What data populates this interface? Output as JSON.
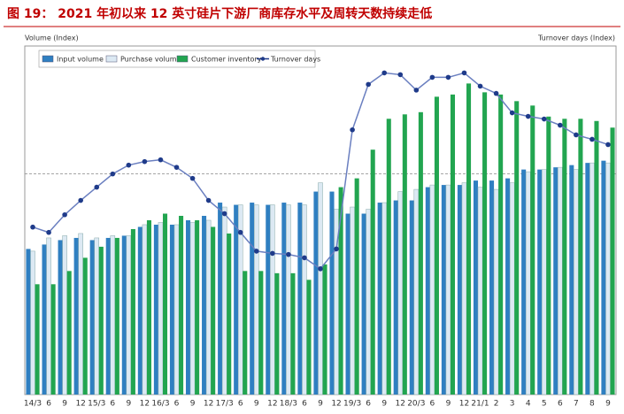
{
  "chart_data": {
    "type": "bar_line",
    "title": "图 19： 2021 年初以来 12 英寸硅片下游厂商库存水平及周转天数持续走低",
    "y_label": "Volume (Index)",
    "y2_label": "Turnover days (Index)",
    "categories": [
      "14/3",
      "6",
      "9",
      "12",
      "15/3",
      "6",
      "9",
      "12",
      "16/3",
      "6",
      "9",
      "12",
      "17/3",
      "6",
      "9",
      "12",
      "18/3",
      "6",
      "9",
      "12",
      "19/3",
      "6",
      "9",
      "12",
      "20/3",
      "6",
      "9",
      "12",
      "21/1",
      "2",
      "3",
      "4",
      "5",
      "6",
      "7",
      "8",
      "9"
    ],
    "ylim": [
      0,
      160
    ],
    "y2lim": [
      0,
      160
    ],
    "reference_line": 100,
    "series": [
      {
        "name": "Input volume",
        "color": "#2f7fc1",
        "values": [
          66,
          68,
          70,
          71,
          70,
          71,
          72,
          76,
          77,
          77,
          79,
          81,
          87,
          86,
          87,
          86,
          87,
          87,
          92,
          92,
          82,
          82,
          87,
          88,
          88,
          94,
          95,
          95,
          97,
          97,
          98,
          102,
          102,
          103,
          104,
          105,
          106
        ]
      },
      {
        "name": "Purchase volume",
        "color": "#dce9f3",
        "values": [
          65,
          71,
          72,
          73,
          71,
          72,
          72,
          77,
          78,
          77,
          78,
          79,
          85,
          86,
          86,
          86,
          86,
          86,
          96,
          84,
          85,
          84,
          87,
          92,
          93,
          95,
          95,
          96,
          94,
          93,
          96,
          101,
          102,
          103,
          102,
          105,
          105
        ]
      },
      {
        "name": "Customer inventory",
        "color": "#22a550",
        "values": [
          50,
          50,
          56,
          62,
          67,
          71,
          75,
          79,
          82,
          81,
          79,
          76,
          73,
          56,
          56,
          55,
          55,
          52,
          59,
          94,
          98,
          111,
          125,
          127,
          128,
          135,
          136,
          141,
          137,
          136,
          133,
          131,
          126,
          125,
          125,
          124,
          121
        ]
      },
      {
        "name": "Turnover days",
        "color": "#1f3b8a",
        "axis": "y2",
        "values": [
          75.9,
          73.5,
          81.5,
          88,
          94,
          100,
          104,
          105.6,
          106.4,
          103,
          98,
          88,
          82,
          73.5,
          65,
          64,
          63.5,
          62,
          57,
          66,
          120,
          140.6,
          145.8,
          145,
          138,
          143.8,
          143.8,
          145.8,
          139.8,
          136.5,
          127.7,
          126.1,
          124.9,
          122.1,
          117.7,
          115.7,
          113.3
        ]
      }
    ]
  }
}
